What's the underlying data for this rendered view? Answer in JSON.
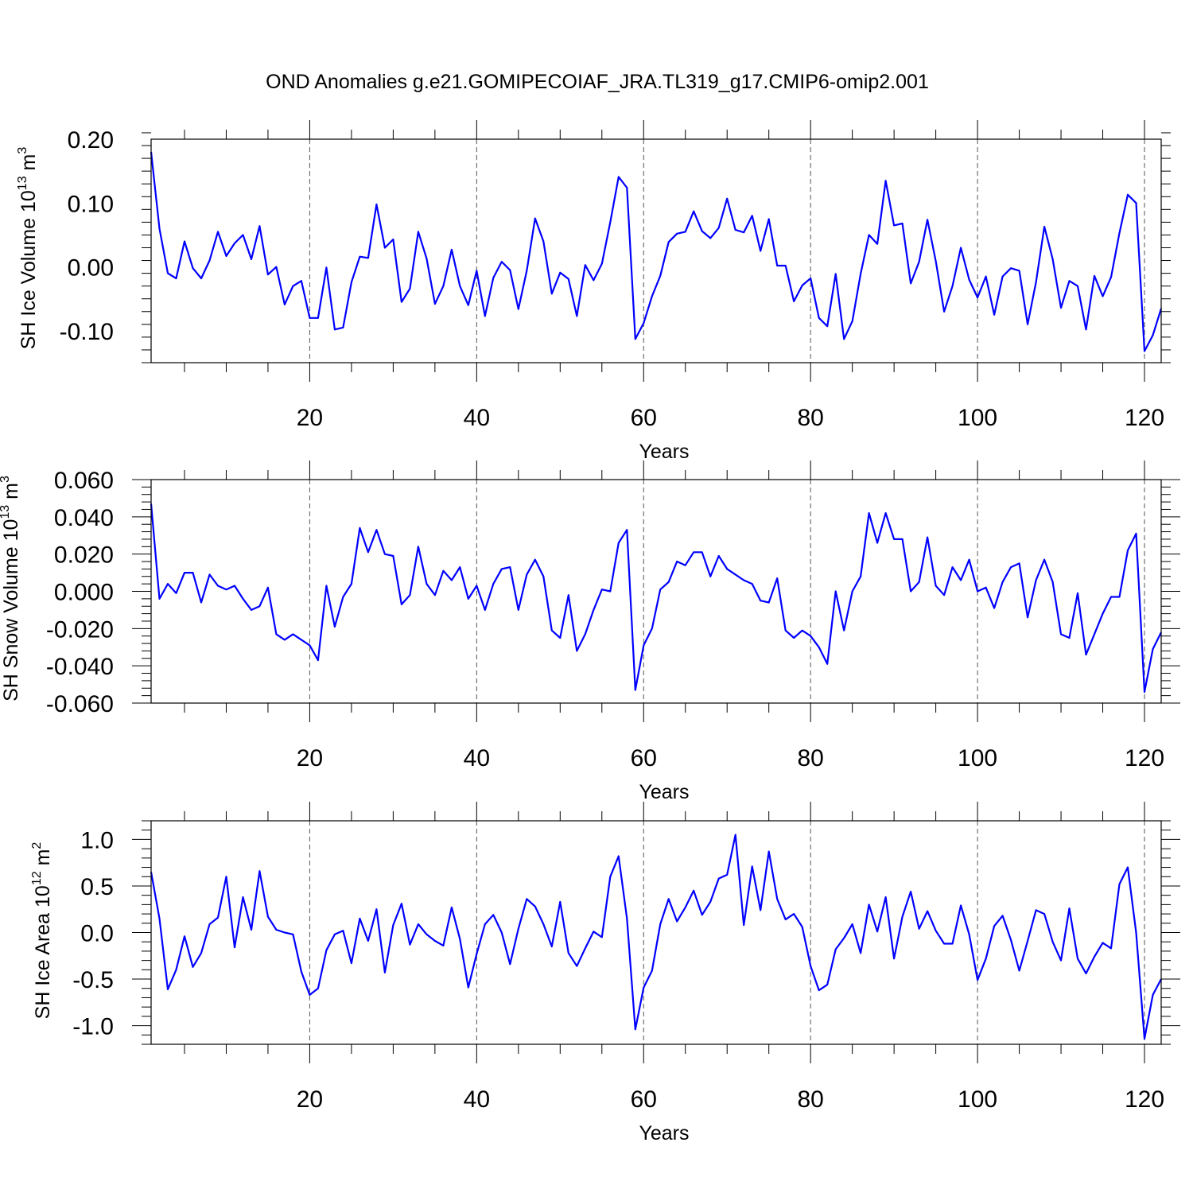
{
  "figure": {
    "title": "OND Anomalies g.e21.GOMIPECOIAF_JRA.TL319_g17.CMIP6-omip2.001"
  },
  "chart_data": [
    {
      "type": "line",
      "ylabel": {
        "prefix": "SH Ice Volume 10",
        "exp": "13",
        "mid": " m",
        "unit_exp": "3"
      },
      "xlabel": "Years",
      "xlim": [
        1,
        122
      ],
      "xticks": [
        20,
        40,
        60,
        80,
        100,
        120
      ],
      "xtick_labels": [
        "20",
        "40",
        "60",
        "80",
        "100",
        "120"
      ],
      "ylim": [
        -0.15,
        0.2
      ],
      "yticks": [
        0.2,
        0.1,
        0.0,
        -0.1
      ],
      "ytick_labels": [
        "0.20",
        "0.10",
        "0.00",
        "-0.10"
      ],
      "grid": "vertical dashed at x ticks",
      "series": [
        {
          "color": "#0000ff",
          "values": [
            0.18,
            0.06,
            -0.01,
            -0.018,
            0.04,
            -0.002,
            -0.018,
            0.01,
            0.055,
            0.017,
            0.037,
            0.05,
            0.012,
            0.064,
            -0.012,
            0.0,
            -0.059,
            -0.03,
            -0.022,
            -0.08,
            -0.08,
            -0.001,
            -0.098,
            -0.095,
            -0.024,
            0.016,
            0.014,
            0.098,
            0.03,
            0.043,
            -0.055,
            -0.034,
            0.055,
            0.013,
            -0.058,
            -0.03,
            0.027,
            -0.03,
            -0.06,
            -0.006,
            -0.077,
            -0.017,
            0.008,
            -0.005,
            -0.066,
            -0.006,
            0.076,
            0.04,
            -0.042,
            -0.009,
            -0.019,
            -0.077,
            0.003,
            -0.021,
            0.005,
            0.07,
            0.141,
            0.124,
            -0.113,
            -0.088,
            -0.046,
            -0.014,
            0.039,
            0.052,
            0.055,
            0.087,
            0.056,
            0.045,
            0.061,
            0.107,
            0.058,
            0.054,
            0.08,
            0.025,
            0.075,
            0.002,
            0.002,
            -0.054,
            -0.029,
            -0.018,
            -0.08,
            -0.093,
            -0.011,
            -0.113,
            -0.085,
            -0.011,
            0.05,
            0.036,
            0.135,
            0.065,
            0.068,
            -0.026,
            0.008,
            0.074,
            0.009,
            -0.07,
            -0.03,
            0.03,
            -0.02,
            -0.048,
            -0.015,
            -0.075,
            -0.015,
            -0.002,
            -0.006,
            -0.09,
            -0.024,
            0.063,
            0.012,
            -0.064,
            -0.022,
            -0.03,
            -0.098,
            -0.014,
            -0.046,
            -0.016,
            0.053,
            0.113,
            0.1,
            -0.132,
            -0.107,
            -0.065
          ]
        }
      ]
    },
    {
      "type": "line",
      "ylabel": {
        "prefix": "SH Snow Volume 10",
        "exp": "13",
        "mid": " m",
        "unit_exp": "3"
      },
      "xlabel": "Years",
      "xlim": [
        1,
        122
      ],
      "xticks": [
        20,
        40,
        60,
        80,
        100,
        120
      ],
      "xtick_labels": [
        "20",
        "40",
        "60",
        "80",
        "100",
        "120"
      ],
      "ylim": [
        -0.06,
        0.06
      ],
      "yticks": [
        0.06,
        0.04,
        0.02,
        0.0,
        -0.02,
        -0.04,
        -0.06
      ],
      "ytick_labels": [
        "0.060",
        "0.040",
        "0.020",
        "0.000",
        "-0.020",
        "-0.040",
        "-0.060"
      ],
      "grid": "vertical dashed at x ticks",
      "series": [
        {
          "color": "#0000ff",
          "values": [
            0.047,
            -0.004,
            0.004,
            -0.001,
            0.01,
            0.01,
            -0.006,
            0.009,
            0.003,
            0.001,
            0.003,
            -0.004,
            -0.01,
            -0.008,
            0.002,
            -0.023,
            -0.026,
            -0.023,
            -0.026,
            -0.029,
            -0.037,
            0.003,
            -0.019,
            -0.003,
            0.004,
            0.034,
            0.021,
            0.033,
            0.02,
            0.019,
            -0.007,
            -0.002,
            0.024,
            0.004,
            -0.002,
            0.011,
            0.006,
            0.013,
            -0.004,
            0.003,
            -0.01,
            0.004,
            0.012,
            0.013,
            -0.01,
            0.009,
            0.017,
            0.008,
            -0.021,
            -0.025,
            -0.002,
            -0.032,
            -0.023,
            -0.01,
            0.001,
            0.0,
            0.026,
            0.033,
            -0.053,
            -0.029,
            -0.02,
            0.001,
            0.005,
            0.016,
            0.014,
            0.021,
            0.021,
            0.008,
            0.019,
            0.012,
            0.009,
            0.006,
            0.004,
            -0.005,
            -0.006,
            0.007,
            -0.021,
            -0.025,
            -0.021,
            -0.024,
            -0.03,
            -0.039,
            0.0,
            -0.021,
            0.0,
            0.008,
            0.042,
            0.026,
            0.042,
            0.028,
            0.028,
            0.0,
            0.005,
            0.029,
            0.003,
            -0.002,
            0.013,
            0.006,
            0.017,
            0.0,
            0.002,
            -0.009,
            0.005,
            0.013,
            0.015,
            -0.014,
            0.006,
            0.017,
            0.005,
            -0.023,
            -0.025,
            -0.001,
            -0.034,
            -0.023,
            -0.012,
            -0.003,
            -0.003,
            0.022,
            0.031,
            -0.054,
            -0.031,
            -0.022
          ]
        }
      ]
    },
    {
      "type": "line",
      "ylabel": {
        "prefix": "SH Ice Area 10",
        "exp": "12",
        "mid": " m",
        "unit_exp": "2"
      },
      "xlabel": "Years",
      "xlim": [
        1,
        122
      ],
      "xticks": [
        20,
        40,
        60,
        80,
        100,
        120
      ],
      "xtick_labels": [
        "20",
        "40",
        "60",
        "80",
        "100",
        "120"
      ],
      "ylim": [
        -1.2,
        1.2
      ],
      "yticks": [
        1.0,
        0.5,
        0.0,
        -0.5,
        -1.0
      ],
      "ytick_labels": [
        "1.0",
        "0.5",
        "0.0",
        "-0.5",
        "-1.0"
      ],
      "grid": "vertical dashed at x ticks",
      "series": [
        {
          "color": "#0000ff",
          "values": [
            0.65,
            0.15,
            -0.61,
            -0.4,
            -0.04,
            -0.37,
            -0.22,
            0.09,
            0.16,
            0.6,
            -0.16,
            0.38,
            0.03,
            0.66,
            0.17,
            0.03,
            0.0,
            -0.02,
            -0.42,
            -0.67,
            -0.6,
            -0.19,
            -0.02,
            0.02,
            -0.33,
            0.15,
            -0.09,
            0.25,
            -0.43,
            0.08,
            0.31,
            -0.13,
            0.09,
            -0.02,
            -0.09,
            -0.14,
            0.27,
            -0.07,
            -0.59,
            -0.23,
            0.09,
            0.19,
            0.0,
            -0.34,
            0.04,
            0.36,
            0.28,
            0.09,
            -0.15,
            0.33,
            -0.22,
            -0.36,
            -0.17,
            0.01,
            -0.05,
            0.6,
            0.82,
            0.15,
            -1.04,
            -0.59,
            -0.41,
            0.09,
            0.36,
            0.12,
            0.27,
            0.45,
            0.19,
            0.33,
            0.58,
            0.62,
            1.05,
            0.08,
            0.71,
            0.24,
            0.87,
            0.36,
            0.14,
            0.2,
            0.06,
            -0.36,
            -0.62,
            -0.56,
            -0.18,
            -0.06,
            0.09,
            -0.22,
            0.3,
            0.01,
            0.38,
            -0.28,
            0.17,
            0.44,
            0.04,
            0.23,
            0.02,
            -0.12,
            -0.12,
            0.29,
            -0.02,
            -0.51,
            -0.28,
            0.07,
            0.18,
            -0.08,
            -0.41,
            -0.09,
            0.24,
            0.2,
            -0.1,
            -0.3,
            0.26,
            -0.28,
            -0.44,
            -0.26,
            -0.11,
            -0.17,
            0.52,
            0.7,
            0.0,
            -1.14,
            -0.67,
            -0.5
          ]
        }
      ]
    }
  ]
}
